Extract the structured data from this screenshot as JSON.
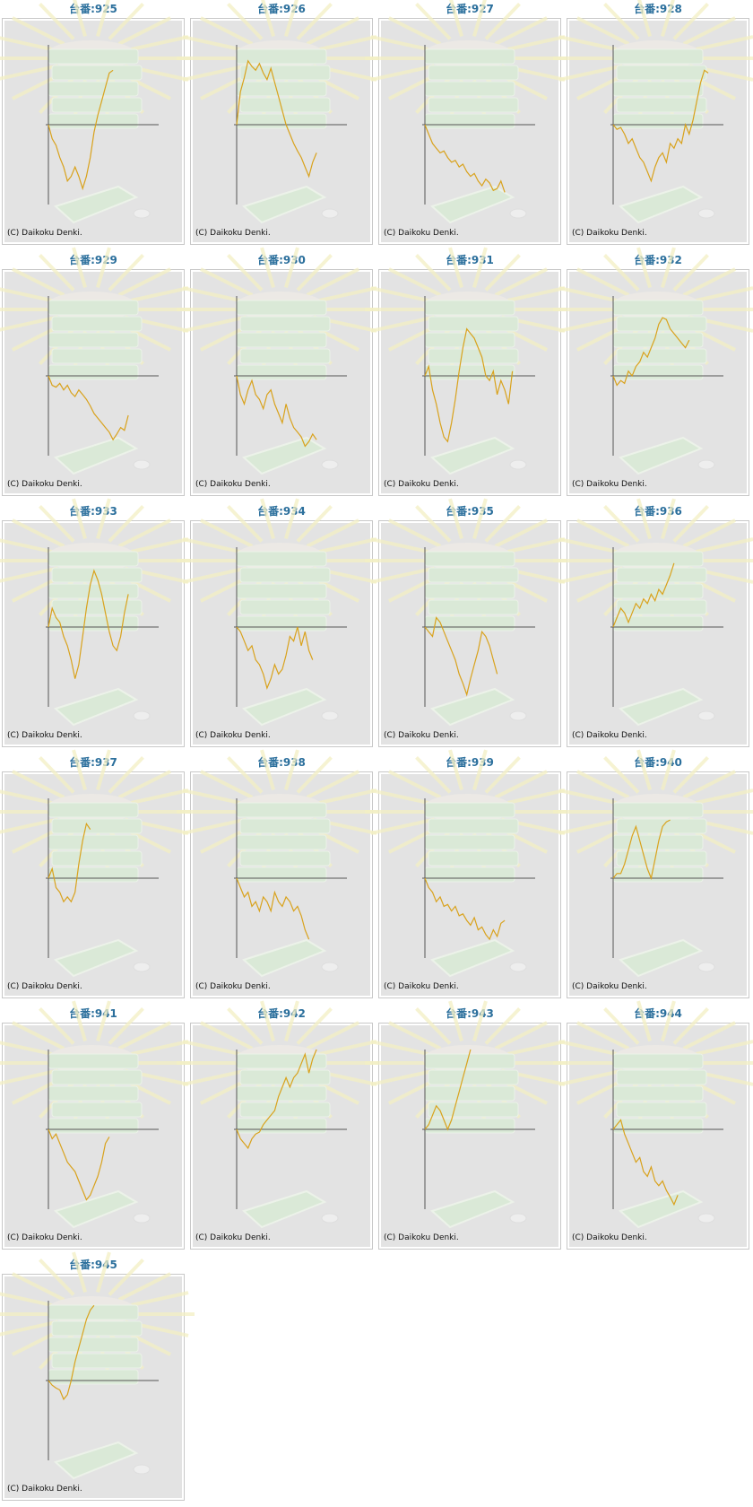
{
  "chart_data": [
    {
      "type": "line",
      "title": "台番:925",
      "source": "(C) Daikoku Denki.",
      "color": "#d9a21c",
      "xlim": [
        0,
        29
      ],
      "ylim": [
        -85,
        85
      ],
      "values": [
        0,
        -15,
        -22,
        -35,
        -45,
        -60,
        -55,
        -45,
        -55,
        -68,
        -55,
        -35,
        -8,
        10,
        25,
        40,
        55,
        58
      ]
    },
    {
      "type": "line",
      "title": "台番:926",
      "source": "(C) Daikoku Denki.",
      "color": "#d9a21c",
      "xlim": [
        0,
        29
      ],
      "ylim": [
        -85,
        85
      ],
      "values": [
        0,
        35,
        50,
        68,
        62,
        58,
        65,
        55,
        48,
        60,
        45,
        30,
        15,
        0,
        -10,
        -20,
        -28,
        -35,
        -45,
        -55,
        -40,
        -30
      ]
    },
    {
      "type": "line",
      "title": "台番:927",
      "source": "(C) Daikoku Denki.",
      "color": "#d9a21c",
      "xlim": [
        0,
        29
      ],
      "ylim": [
        -85,
        85
      ],
      "values": [
        0,
        -10,
        -20,
        -25,
        -30,
        -28,
        -35,
        -40,
        -38,
        -45,
        -42,
        -50,
        -55,
        -52,
        -60,
        -65,
        -58,
        -62,
        -70,
        -68,
        -60,
        -72
      ]
    },
    {
      "type": "line",
      "title": "台番:928",
      "source": "(C) Daikoku Denki.",
      "color": "#d9a21c",
      "xlim": [
        0,
        29
      ],
      "ylim": [
        -85,
        85
      ],
      "values": [
        0,
        -5,
        -3,
        -10,
        -20,
        -15,
        -25,
        -35,
        -40,
        -50,
        -60,
        -45,
        -35,
        -30,
        -40,
        -20,
        -25,
        -15,
        -20,
        0,
        -10,
        5,
        25,
        45,
        58,
        55
      ]
    },
    {
      "type": "line",
      "title": "台番:929",
      "source": "(C) Daikoku Denki.",
      "color": "#d9a21c",
      "xlim": [
        0,
        29
      ],
      "ylim": [
        -85,
        85
      ],
      "values": [
        0,
        -10,
        -12,
        -8,
        -15,
        -10,
        -18,
        -22,
        -15,
        -20,
        -25,
        -32,
        -40,
        -45,
        -50,
        -55,
        -60,
        -68,
        -62,
        -55,
        -58,
        -42
      ]
    },
    {
      "type": "line",
      "title": "台番:930",
      "source": "(C) Daikoku Denki.",
      "color": "#d9a21c",
      "xlim": [
        0,
        29
      ],
      "ylim": [
        -85,
        85
      ],
      "values": [
        0,
        -20,
        -30,
        -15,
        -5,
        -20,
        -25,
        -35,
        -20,
        -15,
        -30,
        -40,
        -50,
        -30,
        -45,
        -55,
        -60,
        -65,
        -75,
        -70,
        -62,
        -68
      ]
    },
    {
      "type": "line",
      "title": "台番:931",
      "source": "(C) Daikoku Denki.",
      "color": "#d9a21c",
      "xlim": [
        0,
        29
      ],
      "ylim": [
        -85,
        85
      ],
      "values": [
        0,
        10,
        -15,
        -30,
        -50,
        -65,
        -70,
        -50,
        -25,
        5,
        30,
        50,
        45,
        40,
        30,
        20,
        0,
        -5,
        5,
        -20,
        -5,
        -15,
        -30,
        5
      ]
    },
    {
      "type": "line",
      "title": "台番:932",
      "source": "(C) Daikoku Denki.",
      "color": "#d9a21c",
      "xlim": [
        0,
        29
      ],
      "ylim": [
        -85,
        85
      ],
      "values": [
        0,
        -10,
        -5,
        -8,
        5,
        0,
        10,
        15,
        25,
        20,
        30,
        40,
        55,
        62,
        60,
        50,
        45,
        40,
        35,
        30,
        38
      ]
    },
    {
      "type": "line",
      "title": "台番:933",
      "source": "(C) Daikoku Denki.",
      "color": "#d9a21c",
      "xlim": [
        0,
        29
      ],
      "ylim": [
        -85,
        85
      ],
      "values": [
        0,
        20,
        10,
        5,
        -10,
        -20,
        -35,
        -55,
        -40,
        -10,
        20,
        45,
        60,
        50,
        35,
        15,
        -5,
        -20,
        -25,
        -10,
        15,
        35
      ]
    },
    {
      "type": "line",
      "title": "台番:934",
      "source": "(C) Daikoku Denki.",
      "color": "#d9a21c",
      "xlim": [
        0,
        29
      ],
      "ylim": [
        -85,
        85
      ],
      "values": [
        0,
        -5,
        -15,
        -25,
        -20,
        -35,
        -40,
        -50,
        -65,
        -55,
        -40,
        -50,
        -45,
        -30,
        -10,
        -15,
        0,
        -20,
        -5,
        -25,
        -35
      ]
    },
    {
      "type": "line",
      "title": "台番:935",
      "source": "(C) Daikoku Denki.",
      "color": "#d9a21c",
      "xlim": [
        0,
        29
      ],
      "ylim": [
        -85,
        85
      ],
      "values": [
        0,
        -5,
        -10,
        10,
        5,
        -5,
        -15,
        -25,
        -35,
        -50,
        -60,
        -72,
        -55,
        -40,
        -25,
        -5,
        -10,
        -20,
        -35,
        -50
      ]
    },
    {
      "type": "line",
      "title": "台番:936",
      "source": "(C) Daikoku Denki.",
      "color": "#d9a21c",
      "xlim": [
        0,
        29
      ],
      "ylim": [
        -85,
        85
      ],
      "values": [
        0,
        10,
        20,
        15,
        5,
        15,
        25,
        20,
        30,
        25,
        35,
        28,
        40,
        35,
        45,
        55,
        68
      ]
    },
    {
      "type": "line",
      "title": "台番:937",
      "source": "(C) Daikoku Denki.",
      "color": "#d9a21c",
      "xlim": [
        0,
        29
      ],
      "ylim": [
        -85,
        85
      ],
      "values": [
        0,
        10,
        -10,
        -15,
        -25,
        -20,
        -25,
        -15,
        15,
        40,
        58,
        52
      ]
    },
    {
      "type": "line",
      "title": "台番:938",
      "source": "(C) Daikoku Denki.",
      "color": "#d9a21c",
      "xlim": [
        0,
        29
      ],
      "ylim": [
        -85,
        85
      ],
      "values": [
        0,
        -10,
        -20,
        -15,
        -30,
        -25,
        -35,
        -20,
        -25,
        -35,
        -15,
        -25,
        -30,
        -20,
        -25,
        -35,
        -30,
        -40,
        -55,
        -65
      ]
    },
    {
      "type": "line",
      "title": "台番:939",
      "source": "(C) Daikoku Denki.",
      "color": "#d9a21c",
      "xlim": [
        0,
        29
      ],
      "ylim": [
        -85,
        85
      ],
      "values": [
        0,
        -10,
        -15,
        -25,
        -20,
        -30,
        -28,
        -35,
        -30,
        -40,
        -38,
        -45,
        -50,
        -42,
        -55,
        -52,
        -60,
        -65,
        -55,
        -62,
        -48,
        -45
      ]
    },
    {
      "type": "line",
      "title": "台番:940",
      "source": "(C) Daikoku Denki.",
      "color": "#d9a21c",
      "xlim": [
        0,
        29
      ],
      "ylim": [
        -85,
        85
      ],
      "values": [
        0,
        5,
        5,
        15,
        30,
        45,
        55,
        40,
        25,
        10,
        0,
        20,
        40,
        55,
        60,
        62
      ]
    },
    {
      "type": "line",
      "title": "台番:941",
      "source": "(C) Daikoku Denki.",
      "color": "#d9a21c",
      "xlim": [
        0,
        29
      ],
      "ylim": [
        -85,
        85
      ],
      "values": [
        0,
        -10,
        -5,
        -15,
        -25,
        -35,
        -40,
        -45,
        -55,
        -65,
        -75,
        -70,
        -60,
        -50,
        -35,
        -15,
        -8
      ]
    },
    {
      "type": "line",
      "title": "台番:942",
      "source": "(C) Daikoku Denki.",
      "color": "#d9a21c",
      "xlim": [
        0,
        29
      ],
      "ylim": [
        -85,
        85
      ],
      "values": [
        0,
        -10,
        -15,
        -20,
        -10,
        -5,
        -3,
        5,
        10,
        15,
        20,
        35,
        45,
        55,
        45,
        55,
        60,
        70,
        80,
        60,
        75,
        85
      ]
    },
    {
      "type": "line",
      "title": "台番:943",
      "source": "(C) Daikoku Denki.",
      "color": "#d9a21c",
      "xlim": [
        0,
        29
      ],
      "ylim": [
        -85,
        85
      ],
      "values": [
        0,
        5,
        15,
        25,
        20,
        10,
        0,
        10,
        25,
        40,
        55,
        70,
        85
      ]
    },
    {
      "type": "line",
      "title": "台番:944",
      "source": "(C) Daikoku Denki.",
      "color": "#d9a21c",
      "xlim": [
        0,
        29
      ],
      "ylim": [
        -85,
        85
      ],
      "values": [
        0,
        5,
        10,
        -5,
        -15,
        -25,
        -35,
        -30,
        -45,
        -50,
        -40,
        -55,
        -60,
        -55,
        -65,
        -72,
        -80,
        -70
      ]
    },
    {
      "type": "line",
      "title": "台番:945",
      "source": "(C) Daikoku Denki.",
      "color": "#d9a21c",
      "xlim": [
        0,
        29
      ],
      "ylim": [
        -85,
        85
      ],
      "values": [
        0,
        -5,
        -8,
        -10,
        -20,
        -15,
        0,
        20,
        35,
        50,
        65,
        75,
        80
      ]
    }
  ]
}
